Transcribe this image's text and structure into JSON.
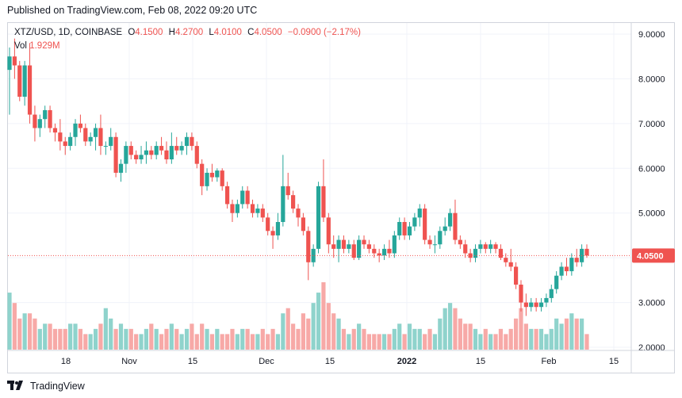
{
  "header": {
    "published": "Published on TradingView.com, Feb 08, 2022 09:20 UTC"
  },
  "legend": {
    "symbol": "XTZ/USD, 1D, COINBASE",
    "o_label": "O",
    "o_value": "4.1500",
    "h_label": "H",
    "h_value": "4.2700",
    "l_label": "L",
    "l_value": "4.0100",
    "c_label": "C",
    "c_value": "4.0500",
    "change": "−0.0900 (−2.17%)",
    "vol_label": "Vol",
    "vol_value": "1.929M"
  },
  "footer": {
    "brand": "TradingView",
    "logo_icon": "tradingview-logo-icon"
  },
  "colors": {
    "up": "#26a69a",
    "down": "#ef5350",
    "vol_up": "#8fd3cc",
    "vol_down": "#f7a9a7",
    "last_price_bg": "#ef5350"
  },
  "chart_data": {
    "type": "candlestick",
    "symbol": "XTZ/USD",
    "interval": "1D",
    "exchange": "COINBASE",
    "y_axis_ticks": [
      "9.0000",
      "8.0000",
      "7.0000",
      "6.0000",
      "5.0000",
      "4.0000",
      "3.0000",
      "2.0000"
    ],
    "ylim": [
      1.95,
      9.25
    ],
    "x_axis_ticks": [
      "18",
      "Nov",
      "15",
      "Dec",
      "15",
      "2022",
      "15",
      "Feb",
      "15"
    ],
    "last_price": "4.0500",
    "grid": true,
    "volume_max": 13,
    "ohlc": [
      [
        8.2,
        8.7,
        7.2,
        8.5,
        11
      ],
      [
        8.5,
        8.9,
        8.0,
        8.3,
        9
      ],
      [
        8.3,
        8.4,
        7.5,
        7.6,
        6
      ],
      [
        7.6,
        8.4,
        7.4,
        8.3,
        7
      ],
      [
        8.3,
        8.8,
        7.0,
        7.2,
        7
      ],
      [
        7.2,
        7.4,
        6.6,
        6.9,
        6
      ],
      [
        6.9,
        7.2,
        6.7,
        7.1,
        4
      ],
      [
        7.1,
        7.4,
        6.9,
        7.3,
        5
      ],
      [
        7.3,
        7.4,
        6.8,
        6.9,
        5
      ],
      [
        6.9,
        7.0,
        6.6,
        6.8,
        4
      ],
      [
        6.8,
        7.1,
        6.4,
        6.6,
        4
      ],
      [
        6.6,
        6.7,
        6.3,
        6.5,
        4
      ],
      [
        6.5,
        6.8,
        6.4,
        6.7,
        5
      ],
      [
        6.7,
        7.1,
        6.5,
        7.0,
        5
      ],
      [
        7.0,
        7.2,
        6.8,
        6.9,
        4
      ],
      [
        6.9,
        7.0,
        6.5,
        6.6,
        3
      ],
      [
        6.6,
        6.8,
        6.5,
        6.7,
        3
      ],
      [
        6.7,
        7.0,
        6.4,
        6.9,
        4
      ],
      [
        6.9,
        7.2,
        6.3,
        6.5,
        5
      ],
      [
        6.5,
        6.6,
        6.3,
        6.5,
        8
      ],
      [
        6.5,
        6.9,
        6.4,
        6.7,
        6
      ],
      [
        6.7,
        6.8,
        5.8,
        5.9,
        4
      ],
      [
        5.9,
        6.2,
        5.7,
        6.1,
        5
      ],
      [
        6.1,
        6.6,
        5.9,
        6.5,
        4
      ],
      [
        6.5,
        6.6,
        6.2,
        6.3,
        4
      ],
      [
        6.3,
        6.4,
        6.1,
        6.2,
        3
      ],
      [
        6.2,
        6.5,
        6.1,
        6.3,
        3
      ],
      [
        6.3,
        6.6,
        6.1,
        6.4,
        4
      ],
      [
        6.4,
        6.5,
        6.2,
        6.3,
        5
      ],
      [
        6.3,
        6.6,
        6.2,
        6.5,
        4
      ],
      [
        6.5,
        6.7,
        6.3,
        6.4,
        3
      ],
      [
        6.4,
        6.6,
        6.1,
        6.2,
        4
      ],
      [
        6.2,
        6.8,
        6.1,
        6.5,
        5
      ],
      [
        6.5,
        6.7,
        6.3,
        6.4,
        4
      ],
      [
        6.4,
        6.6,
        6.3,
        6.5,
        3
      ],
      [
        6.5,
        6.8,
        6.3,
        6.7,
        4
      ],
      [
        6.7,
        6.8,
        6.4,
        6.5,
        5
      ],
      [
        6.5,
        6.6,
        6.0,
        6.1,
        3
      ],
      [
        6.1,
        6.2,
        5.4,
        5.6,
        5
      ],
      [
        5.6,
        6.0,
        5.5,
        5.9,
        4
      ],
      [
        5.9,
        6.1,
        5.7,
        5.8,
        3
      ],
      [
        5.8,
        6.0,
        5.7,
        5.95,
        4
      ],
      [
        5.95,
        6.0,
        5.5,
        5.6,
        3
      ],
      [
        5.6,
        5.7,
        5.1,
        5.2,
        3
      ],
      [
        5.2,
        5.3,
        4.8,
        5.0,
        4
      ],
      [
        5.0,
        5.3,
        4.9,
        5.2,
        3
      ],
      [
        5.2,
        5.6,
        5.1,
        5.5,
        4
      ],
      [
        5.5,
        5.6,
        5.1,
        5.2,
        4
      ],
      [
        5.2,
        5.3,
        4.9,
        5.0,
        3
      ],
      [
        5.0,
        5.2,
        4.9,
        5.1,
        3
      ],
      [
        5.1,
        5.2,
        4.8,
        4.9,
        4
      ],
      [
        4.9,
        5.0,
        4.5,
        4.6,
        3
      ],
      [
        4.6,
        4.7,
        4.2,
        4.5,
        4
      ],
      [
        4.5,
        5.0,
        4.4,
        4.8,
        3
      ],
      [
        4.8,
        6.3,
        4.7,
        5.6,
        7
      ],
      [
        5.6,
        5.9,
        5.3,
        5.4,
        8
      ],
      [
        5.4,
        5.5,
        5.0,
        5.1,
        5
      ],
      [
        5.1,
        5.2,
        4.7,
        4.9,
        4
      ],
      [
        4.9,
        5.0,
        4.5,
        4.6,
        7
      ],
      [
        4.6,
        4.7,
        3.5,
        3.9,
        6
      ],
      [
        3.9,
        4.3,
        3.8,
        4.2,
        9
      ],
      [
        4.2,
        5.7,
        4.1,
        5.6,
        11
      ],
      [
        5.6,
        6.2,
        4.8,
        4.9,
        13
      ],
      [
        4.9,
        5.0,
        4.1,
        4.3,
        9
      ],
      [
        4.3,
        4.5,
        4.0,
        4.2,
        7
      ],
      [
        4.2,
        4.5,
        3.9,
        4.4,
        6
      ],
      [
        4.4,
        4.5,
        4.1,
        4.2,
        4
      ],
      [
        4.2,
        4.4,
        4.1,
        4.3,
        3
      ],
      [
        4.3,
        4.4,
        3.95,
        4.0,
        4
      ],
      [
        4.0,
        4.5,
        3.95,
        4.4,
        5
      ],
      [
        4.4,
        4.5,
        4.2,
        4.3,
        4
      ],
      [
        4.3,
        4.4,
        4.1,
        4.2,
        3
      ],
      [
        4.2,
        4.3,
        4.0,
        4.1,
        3
      ],
      [
        4.1,
        4.2,
        3.9,
        4.05,
        3
      ],
      [
        4.05,
        4.3,
        3.95,
        4.2,
        3
      ],
      [
        4.2,
        4.4,
        4.0,
        4.1,
        3
      ],
      [
        4.1,
        4.6,
        4.0,
        4.5,
        4
      ],
      [
        4.5,
        4.9,
        4.4,
        4.8,
        5
      ],
      [
        4.8,
        4.9,
        4.4,
        4.5,
        3
      ],
      [
        4.5,
        4.8,
        4.4,
        4.7,
        5
      ],
      [
        4.7,
        5.0,
        4.6,
        4.9,
        4
      ],
      [
        4.9,
        5.2,
        4.7,
        5.1,
        4
      ],
      [
        5.1,
        5.2,
        4.3,
        4.4,
        3
      ],
      [
        4.4,
        4.5,
        4.2,
        4.3,
        4
      ],
      [
        4.3,
        4.5,
        4.1,
        4.3,
        3
      ],
      [
        4.3,
        4.7,
        4.2,
        4.6,
        6
      ],
      [
        4.6,
        4.9,
        4.5,
        4.7,
        8
      ],
      [
        4.7,
        5.1,
        4.6,
        5.0,
        9
      ],
      [
        5.0,
        5.3,
        4.3,
        4.4,
        8
      ],
      [
        4.4,
        4.5,
        4.2,
        4.3,
        6
      ],
      [
        4.3,
        4.4,
        4.0,
        4.1,
        5
      ],
      [
        4.1,
        4.2,
        3.9,
        4.0,
        5
      ],
      [
        4.0,
        4.3,
        3.9,
        4.2,
        4
      ],
      [
        4.2,
        4.4,
        4.1,
        4.3,
        3
      ],
      [
        4.3,
        4.35,
        4.1,
        4.2,
        4
      ],
      [
        4.2,
        4.4,
        4.1,
        4.3,
        3
      ],
      [
        4.3,
        4.35,
        4.1,
        4.2,
        3
      ],
      [
        4.2,
        4.3,
        3.95,
        4.0,
        4
      ],
      [
        4.0,
        4.1,
        3.8,
        3.9,
        3
      ],
      [
        3.9,
        4.2,
        3.7,
        3.8,
        4
      ],
      [
        3.8,
        3.9,
        3.3,
        3.4,
        6
      ],
      [
        3.4,
        3.5,
        2.8,
        3.0,
        8
      ],
      [
        3.0,
        3.2,
        2.7,
        2.9,
        5
      ],
      [
        2.9,
        3.1,
        2.8,
        3.0,
        4
      ],
      [
        3.0,
        3.1,
        2.8,
        2.9,
        4
      ],
      [
        2.9,
        3.1,
        2.8,
        3.0,
        4
      ],
      [
        3.0,
        3.2,
        2.9,
        3.1,
        3
      ],
      [
        3.1,
        3.4,
        3.0,
        3.3,
        4
      ],
      [
        3.3,
        3.7,
        3.2,
        3.6,
        6
      ],
      [
        3.6,
        3.9,
        3.5,
        3.8,
        5
      ],
      [
        3.8,
        4.0,
        3.6,
        3.7,
        6
      ],
      [
        3.7,
        4.1,
        3.6,
        4.0,
        7
      ],
      [
        4.0,
        4.2,
        3.8,
        3.9,
        6
      ],
      [
        3.9,
        4.3,
        3.8,
        4.2,
        6
      ],
      [
        4.2,
        4.3,
        4.0,
        4.05,
        3
      ]
    ]
  }
}
